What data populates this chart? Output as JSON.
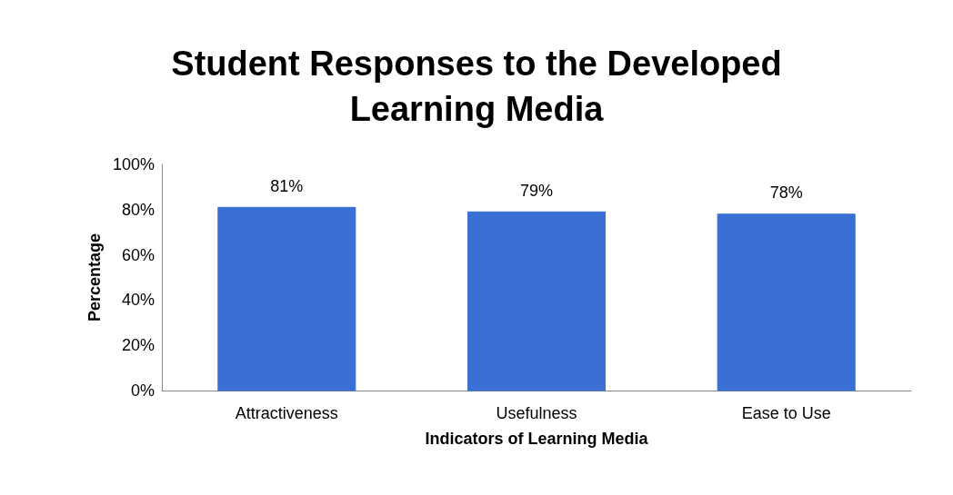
{
  "chart_data": {
    "type": "bar",
    "title": "Student Responses to the Developed\nLearning Media",
    "xlabel": "Indicators of Learning Media",
    "ylabel": "Percentage",
    "categories": [
      "Attractiveness",
      "Usefulness",
      "Ease to Use"
    ],
    "values": [
      81,
      79,
      78
    ],
    "value_labels": [
      "81%",
      "79%",
      "78%"
    ],
    "color": "#3a6fd3",
    "ylim": [
      0,
      100
    ],
    "yticks": [
      {
        "value": 0,
        "label": "0%"
      },
      {
        "value": 20,
        "label": "20%"
      },
      {
        "value": 40,
        "label": "40%"
      },
      {
        "value": 60,
        "label": "60%"
      },
      {
        "value": 80,
        "label": "80%"
      },
      {
        "value": 100,
        "label": "100%"
      }
    ],
    "grid": false
  }
}
